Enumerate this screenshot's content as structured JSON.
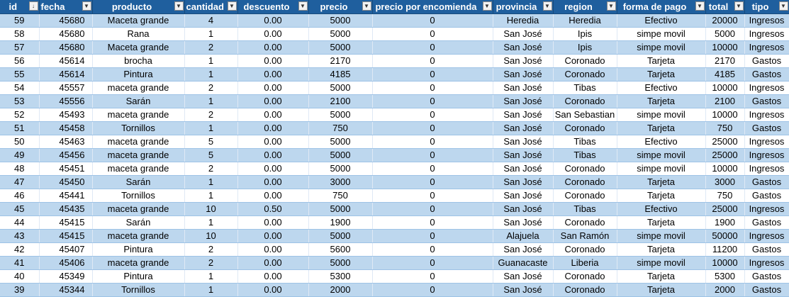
{
  "columns": [
    {
      "label": "id",
      "sort": "↓",
      "filter_icon": "sort-filter-icon"
    },
    {
      "label": "fecha",
      "filter_icon": "filter-dropdown-icon"
    },
    {
      "label": "producto",
      "filter_icon": "filter-dropdown-icon"
    },
    {
      "label": "cantidad",
      "filter_icon": "filter-dropdown-icon"
    },
    {
      "label": "descuento",
      "filter_icon": "filter-dropdown-icon"
    },
    {
      "label": "precio",
      "filter_icon": "filter-dropdown-icon"
    },
    {
      "label": "precio por encomienda",
      "filter_icon": "filter-dropdown-icon"
    },
    {
      "label": "provincia",
      "filter_icon": "filter-dropdown-icon"
    },
    {
      "label": "region",
      "filter_icon": "filter-dropdown-icon"
    },
    {
      "label": "forma de pago",
      "filter_icon": "filter-dropdown-icon"
    },
    {
      "label": "total",
      "filter_icon": "filter-dropdown-icon"
    },
    {
      "label": "tipo",
      "filter_icon": "filter-dropdown-icon"
    }
  ],
  "rows": [
    [
      "59",
      "45680",
      "Maceta grande",
      "4",
      "0.00",
      "5000",
      "0",
      "Heredia",
      "Heredia",
      "Efectivo",
      "20000",
      "Ingresos"
    ],
    [
      "58",
      "45680",
      "Rana",
      "1",
      "0.00",
      "5000",
      "0",
      "San José",
      "Ipis",
      "simpe movil",
      "5000",
      "Ingresos"
    ],
    [
      "57",
      "45680",
      "Maceta grande",
      "2",
      "0.00",
      "5000",
      "0",
      "San José",
      "Ipis",
      "simpe movil",
      "10000",
      "Ingresos"
    ],
    [
      "56",
      "45614",
      "brocha",
      "1",
      "0.00",
      "2170",
      "0",
      "San José",
      "Coronado",
      "Tarjeta",
      "2170",
      "Gastos"
    ],
    [
      "55",
      "45614",
      "Pintura",
      "1",
      "0.00",
      "4185",
      "0",
      "San José",
      "Coronado",
      "Tarjeta",
      "4185",
      "Gastos"
    ],
    [
      "54",
      "45557",
      "maceta grande",
      "2",
      "0.00",
      "5000",
      "0",
      "San José",
      "Tibas",
      "Efectivo",
      "10000",
      "Ingresos"
    ],
    [
      "53",
      "45556",
      "Sarán",
      "1",
      "0.00",
      "2100",
      "0",
      "San José",
      "Coronado",
      "Tarjeta",
      "2100",
      "Gastos"
    ],
    [
      "52",
      "45493",
      "maceta grande",
      "2",
      "0.00",
      "5000",
      "0",
      "San José",
      "San Sebastian",
      "simpe movil",
      "10000",
      "Ingresos"
    ],
    [
      "51",
      "45458",
      "Tornillos",
      "1",
      "0.00",
      "750",
      "0",
      "San José",
      "Coronado",
      "Tarjeta",
      "750",
      "Gastos"
    ],
    [
      "50",
      "45463",
      "maceta grande",
      "5",
      "0.00",
      "5000",
      "0",
      "San José",
      "Tibas",
      "Efectivo",
      "25000",
      "Ingresos"
    ],
    [
      "49",
      "45456",
      "maceta grande",
      "5",
      "0.00",
      "5000",
      "0",
      "San José",
      "Tibas",
      "simpe movil",
      "25000",
      "Ingresos"
    ],
    [
      "48",
      "45451",
      "maceta grande",
      "2",
      "0.00",
      "5000",
      "0",
      "San José",
      "Coronado",
      "simpe movil",
      "10000",
      "Ingresos"
    ],
    [
      "47",
      "45450",
      "Sarán",
      "1",
      "0.00",
      "3000",
      "0",
      "San José",
      "Coronado",
      "Tarjeta",
      "3000",
      "Gastos"
    ],
    [
      "46",
      "45441",
      "Tornillos",
      "1",
      "0.00",
      "750",
      "0",
      "San José",
      "Coronado",
      "Tarjeta",
      "750",
      "Gastos"
    ],
    [
      "45",
      "45435",
      "maceta grande",
      "10",
      "0.50",
      "5000",
      "0",
      "San José",
      "Tibas",
      "Efectivo",
      "25000",
      "Ingresos"
    ],
    [
      "44",
      "45415",
      "Sarán",
      "1",
      "0.00",
      "1900",
      "0",
      "San José",
      "Coronado",
      "Tarjeta",
      "1900",
      "Gastos"
    ],
    [
      "43",
      "45415",
      "maceta grande",
      "10",
      "0.00",
      "5000",
      "0",
      "Alajuela",
      "San Ramón",
      "simpe movil",
      "50000",
      "Ingresos"
    ],
    [
      "42",
      "45407",
      "Pintura",
      "2",
      "0.00",
      "5600",
      "0",
      "San José",
      "Coronado",
      "Tarjeta",
      "11200",
      "Gastos"
    ],
    [
      "41",
      "45406",
      "maceta grande",
      "2",
      "0.00",
      "5000",
      "0",
      "Guanacaste",
      "Liberia",
      "simpe movil",
      "10000",
      "Ingresos"
    ],
    [
      "40",
      "45349",
      "Pintura",
      "1",
      "0.00",
      "5300",
      "0",
      "San José",
      "Coronado",
      "Tarjeta",
      "5300",
      "Gastos"
    ],
    [
      "39",
      "45344",
      "Tornillos",
      "1",
      "0.00",
      "2000",
      "0",
      "San José",
      "Coronado",
      "Tarjeta",
      "2000",
      "Gastos"
    ]
  ]
}
